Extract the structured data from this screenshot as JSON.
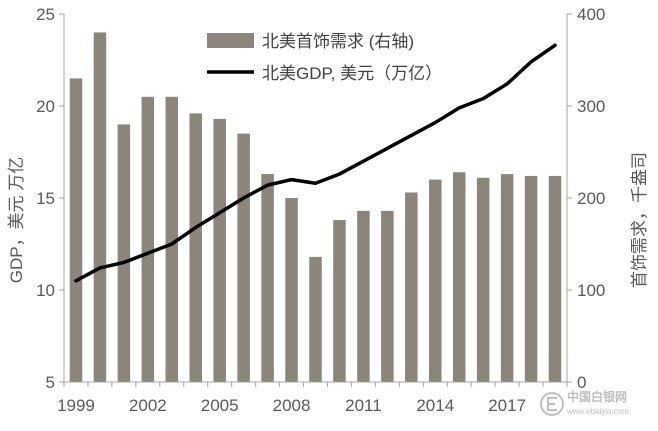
{
  "chart_data": {
    "type": "bar",
    "categories": [
      1999,
      2000,
      2001,
      2002,
      2003,
      2004,
      2005,
      2006,
      2007,
      2008,
      2009,
      2010,
      2011,
      2012,
      2013,
      2014,
      2015,
      2016,
      2017,
      2018,
      2019
    ],
    "x_tick_labels": [
      "1999",
      "2002",
      "2005",
      "2008",
      "2011",
      "2014",
      "2017"
    ],
    "series": [
      {
        "name": "北美首饰需求 (右轴)",
        "type": "bar",
        "axis": "right",
        "color": "#8b857b",
        "values": [
          330,
          380,
          280,
          310,
          310,
          292,
          286,
          270,
          226,
          200,
          136,
          176,
          186,
          186,
          206,
          220,
          228,
          222,
          226,
          224,
          224
        ]
      },
      {
        "name": "北美GDP, 美元（万亿）",
        "type": "line",
        "axis": "left",
        "color": "#000000",
        "values": [
          10.5,
          11.2,
          11.5,
          12.0,
          12.5,
          13.4,
          14.2,
          15.0,
          15.7,
          16.0,
          15.8,
          16.3,
          17.0,
          17.7,
          18.4,
          19.1,
          19.9,
          20.4,
          21.2,
          22.4,
          23.3
        ]
      }
    ],
    "ylabel": "GDP，美元 万亿",
    "y2label": "首饰需求，千盎司",
    "ylim": [
      5,
      25
    ],
    "y2lim": [
      0,
      400
    ],
    "yticks": [
      25,
      20,
      15,
      10,
      5
    ],
    "y2ticks": [
      400,
      300,
      200,
      100,
      0
    ],
    "grid": false,
    "legend": "top-center"
  },
  "watermark": {
    "name": "中国白银网",
    "url": "www.ebaiyin.com"
  }
}
